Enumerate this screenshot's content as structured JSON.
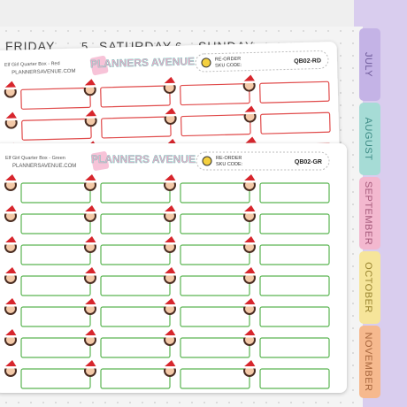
{
  "planner": {
    "days": [
      {
        "name": "FRIDAY",
        "date": "5"
      },
      {
        "name": "SATURDAY",
        "date": "6"
      },
      {
        "name": "SUNDAY"
      }
    ],
    "tabs": [
      "JULY",
      "AUGUST",
      "SEPTEMBER",
      "OCTOBER",
      "NOVEMBER"
    ]
  },
  "back_sheet": {
    "product": "Elf Girl Quarter Box - Red",
    "website": "PLANNERSAVENUE.COM",
    "brand": "PLANNERS AVENUE",
    "reorder": "RE-ORDER",
    "sku_label": "SKU CODE:",
    "sku": "QB02-RD"
  },
  "front_sheet": {
    "product": "Elf Girl Quarter Box - Green",
    "website": "PLANNERSAVENUE.COM",
    "brand": "PLANNERS AVENUE",
    "reorder": "RE-ORDER",
    "sku_label": "SKU CODE:",
    "sku": "QB02-GR"
  }
}
